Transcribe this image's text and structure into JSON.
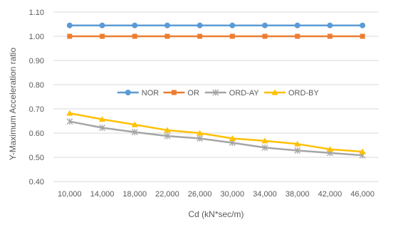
{
  "chart_data": {
    "type": "line",
    "xlabel": "Cd (kN*sec/m)",
    "ylabel": "Y-Maximum Acceleration ratio",
    "categories": [
      "10,000",
      "14,000",
      "18,000",
      "22,000",
      "26,000",
      "30,000",
      "34,000",
      "38,000",
      "42,000",
      "46,000"
    ],
    "ylim": [
      0.4,
      1.1
    ],
    "yticks": [
      "1.10",
      "1.00",
      "0.90",
      "0.80",
      "0.70",
      "0.60",
      "0.50",
      "0.40"
    ],
    "grid": true,
    "legend_position": "center",
    "series": [
      {
        "name": "NOR",
        "color": "#5B9BD5",
        "marker": "circle",
        "values": [
          1.045,
          1.045,
          1.045,
          1.045,
          1.045,
          1.045,
          1.045,
          1.045,
          1.045,
          1.045
        ]
      },
      {
        "name": "OR",
        "color": "#ED7D31",
        "marker": "square",
        "values": [
          1.0,
          1.0,
          1.0,
          1.0,
          1.0,
          1.0,
          1.0,
          1.0,
          1.0,
          1.0
        ]
      },
      {
        "name": "ORD-AY",
        "color": "#A5A5A5",
        "marker": "star",
        "values": [
          0.648,
          0.622,
          0.604,
          0.588,
          0.578,
          0.56,
          0.54,
          0.528,
          0.518,
          0.508
        ]
      },
      {
        "name": "ORD-BY",
        "color": "#FFC000",
        "marker": "triangle",
        "values": [
          0.682,
          0.657,
          0.635,
          0.612,
          0.6,
          0.578,
          0.568,
          0.555,
          0.533,
          0.523
        ]
      }
    ]
  }
}
